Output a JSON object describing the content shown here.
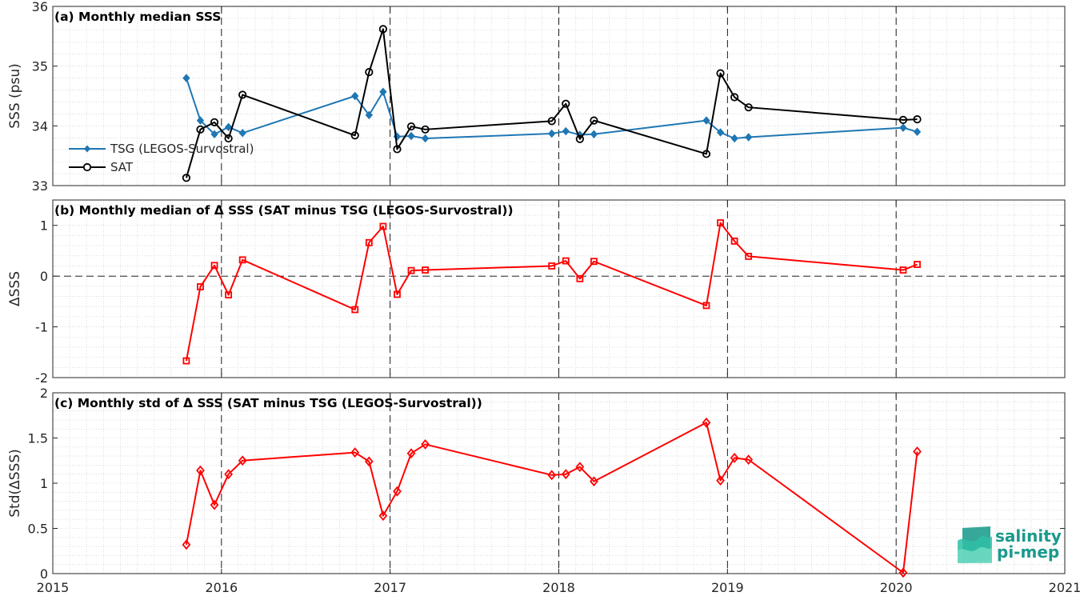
{
  "colors": {
    "tsg": "#1f77b4",
    "sat": "#000000",
    "delta": "#ff0000",
    "grid": "#c8c8c8",
    "logo_accent": "#1a9a8c"
  },
  "x_axis": {
    "ticks": [
      2015,
      2016,
      2017,
      2018,
      2019,
      2020,
      2021
    ],
    "labels": [
      "2015",
      "2016",
      "2017",
      "2018",
      "2019",
      "2020",
      "2021"
    ],
    "lim": [
      2015,
      2021
    ],
    "dashed_year_lines": [
      2016,
      2017,
      2018,
      2019,
      2020
    ]
  },
  "logo": {
    "line1": "salinity",
    "line2": "pi-mep",
    "icon": "salinity-pimep-logo-icon"
  },
  "chart_data": [
    {
      "type": "line",
      "title": "(a) Monthly median SSS",
      "ylabel": "SSS (psu)",
      "ylim": [
        33,
        36
      ],
      "yticks": [
        33,
        34,
        35,
        36
      ],
      "ytick_labels": [
        "33",
        "34",
        "35",
        "36"
      ],
      "grid": true,
      "legend": {
        "placement": "left",
        "entries": [
          "TSG (LEGOS-Survostral)",
          "SAT"
        ]
      },
      "series": [
        {
          "name": "TSG (LEGOS-Survostral)",
          "marker": "diamond-filled",
          "x": [
            "2015-10",
            "2015-11",
            "2015-12",
            "2016-01",
            "2016-02",
            "2016-10",
            "2016-11",
            "2016-12",
            "2017-01",
            "2017-02",
            "2017-03",
            "2017-12",
            "2018-01",
            "2018-02",
            "2018-03",
            "2018-11",
            "2018-12",
            "2019-01",
            "2019-02",
            "2020-01",
            "2020-02"
          ],
          "values": [
            34.8,
            34.09,
            33.86,
            33.98,
            33.88,
            34.5,
            34.18,
            34.57,
            33.82,
            33.83,
            33.79,
            33.87,
            33.91,
            33.85,
            33.86,
            34.09,
            33.89,
            33.79,
            33.81,
            33.97,
            33.9
          ]
        },
        {
          "name": "SAT",
          "marker": "circle-open",
          "x": [
            "2015-10",
            "2015-11",
            "2015-12",
            "2016-01",
            "2016-02",
            "2016-10",
            "2016-11",
            "2016-12",
            "2017-01",
            "2017-02",
            "2017-03",
            "2017-12",
            "2018-01",
            "2018-02",
            "2018-03",
            "2018-11",
            "2018-12",
            "2019-01",
            "2019-02",
            "2020-01",
            "2020-02"
          ],
          "values": [
            33.13,
            33.94,
            34.06,
            33.79,
            34.52,
            33.84,
            34.9,
            35.62,
            33.61,
            33.99,
            33.94,
            34.08,
            34.37,
            33.78,
            34.09,
            33.53,
            34.88,
            34.48,
            34.31,
            34.1,
            34.11
          ]
        }
      ]
    },
    {
      "type": "line",
      "title": "(b) Monthly median of Δ SSS (SAT minus TSG (LEGOS-Survostral))",
      "ylabel": "ΔSSS",
      "ylim": [
        -2,
        1.5
      ],
      "yticks": [
        -2,
        -1,
        0,
        1
      ],
      "ytick_labels": [
        "-2",
        "-1",
        "0",
        "1"
      ],
      "zero_line": true,
      "grid": true,
      "series": [
        {
          "marker": "square-open",
          "x": [
            "2015-10",
            "2015-11",
            "2015-12",
            "2016-01",
            "2016-02",
            "2016-10",
            "2016-11",
            "2016-12",
            "2017-01",
            "2017-02",
            "2017-03",
            "2017-12",
            "2018-01",
            "2018-02",
            "2018-03",
            "2018-11",
            "2018-12",
            "2019-01",
            "2019-02",
            "2020-01",
            "2020-02"
          ],
          "values": [
            -1.67,
            -0.21,
            0.21,
            -0.37,
            0.32,
            -0.66,
            0.66,
            0.98,
            -0.36,
            0.11,
            0.12,
            0.2,
            0.3,
            -0.05,
            0.29,
            -0.58,
            1.05,
            0.69,
            0.39,
            0.12,
            0.23
          ]
        }
      ]
    },
    {
      "type": "line",
      "title": "(c) Monthly std of Δ SSS (SAT minus TSG (LEGOS-Survostral))",
      "ylabel": "Std(ΔSSS)",
      "ylim": [
        0,
        2
      ],
      "yticks": [
        0,
        0.5,
        1,
        1.5,
        2
      ],
      "ytick_labels": [
        "0",
        "0.5",
        "1",
        "1.5",
        "2"
      ],
      "grid": true,
      "series": [
        {
          "marker": "diamond-open",
          "x": [
            "2015-10",
            "2015-11",
            "2015-12",
            "2016-01",
            "2016-02",
            "2016-10",
            "2016-11",
            "2016-12",
            "2017-01",
            "2017-02",
            "2017-03",
            "2017-12",
            "2018-01",
            "2018-02",
            "2018-03",
            "2018-11",
            "2018-12",
            "2019-01",
            "2019-02",
            "2020-01",
            "2020-02"
          ],
          "values": [
            0.32,
            1.14,
            0.76,
            1.1,
            1.25,
            1.34,
            1.24,
            0.64,
            0.91,
            1.33,
            1.43,
            1.09,
            1.1,
            1.18,
            1.02,
            1.67,
            1.03,
            1.28,
            1.26,
            0.01,
            1.35
          ]
        }
      ]
    }
  ]
}
